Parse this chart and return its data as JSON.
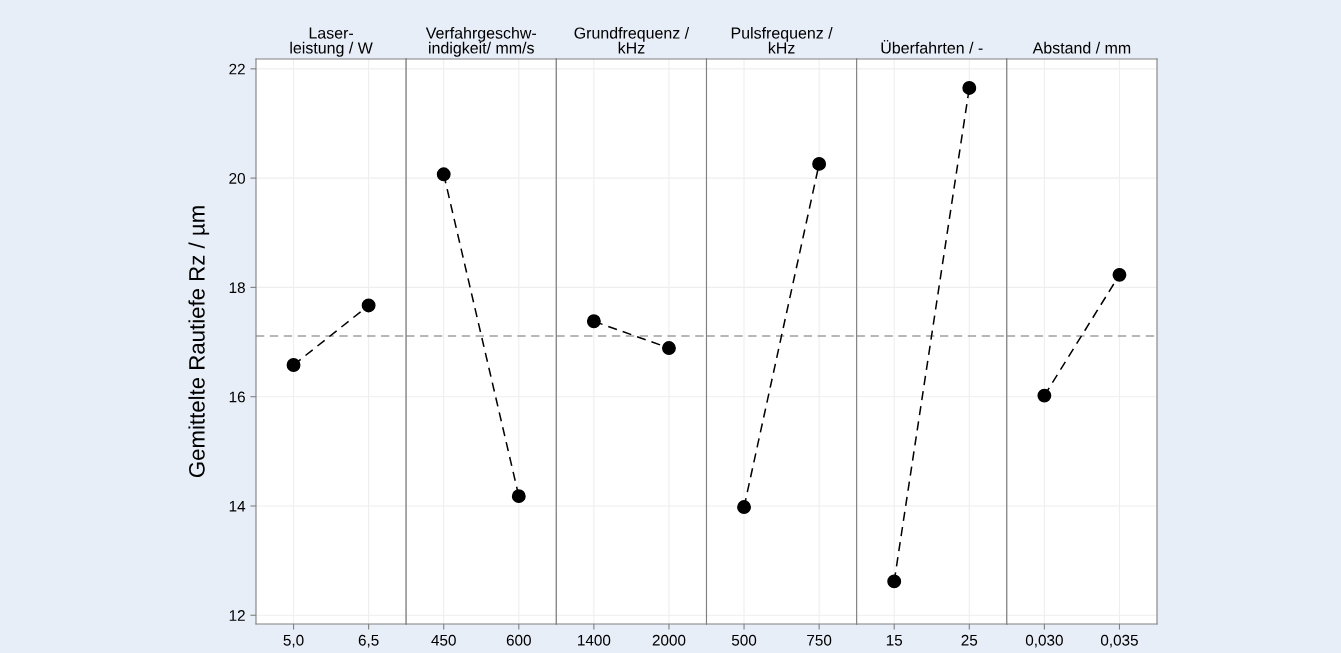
{
  "chart_data": [
    {
      "type": "line",
      "title": "Laser-\nleistung / W",
      "ylabel": "Gemittelte Rautiefe Rz / µm",
      "categories": [
        "5,0",
        "6,5"
      ],
      "values": [
        16.58,
        17.67
      ],
      "color": "#000000",
      "ylim": [
        11.84,
        22.18
      ],
      "yticks": [
        12,
        14,
        16,
        18,
        20,
        22
      ],
      "grid": true,
      "marker": "circle",
      "line_style": "dashed",
      "ref_lines": [
        {
          "axis": "y",
          "value": 17.11,
          "color": "#a0a0a0",
          "line_style": "dashed"
        }
      ]
    },
    {
      "type": "line",
      "title": "Verfahrgeschw-\nindigkeit/ mm/s",
      "categories": [
        "450",
        "600"
      ],
      "values": [
        20.07,
        14.18
      ],
      "color": "#000000",
      "ylim": [
        11.84,
        22.18
      ],
      "yticks": [
        12,
        14,
        16,
        18,
        20,
        22
      ],
      "tick_labels": "x",
      "grid": true,
      "marker": "circle",
      "line_style": "dashed",
      "ref_lines": [
        {
          "axis": "y",
          "value": 17.11,
          "color": "#a0a0a0",
          "line_style": "dashed"
        }
      ]
    },
    {
      "type": "line",
      "title": "Grundfrequenz /\nkHz",
      "categories": [
        "1400",
        "2000"
      ],
      "values": [
        17.38,
        16.89
      ],
      "color": "#000000",
      "ylim": [
        11.84,
        22.18
      ],
      "yticks": [
        12,
        14,
        16,
        18,
        20,
        22
      ],
      "tick_labels": "x",
      "grid": true,
      "marker": "circle",
      "line_style": "dashed",
      "ref_lines": [
        {
          "axis": "y",
          "value": 17.11,
          "color": "#a0a0a0",
          "line_style": "dashed"
        }
      ]
    },
    {
      "type": "line",
      "title": "Pulsfrequenz /\nkHz",
      "categories": [
        "500",
        "750"
      ],
      "values": [
        13.98,
        20.26
      ],
      "color": "#000000",
      "ylim": [
        11.84,
        22.18
      ],
      "yticks": [
        12,
        14,
        16,
        18,
        20,
        22
      ],
      "tick_labels": "x",
      "grid": true,
      "marker": "circle",
      "line_style": "dashed",
      "ref_lines": [
        {
          "axis": "y",
          "value": 17.11,
          "color": "#a0a0a0",
          "line_style": "dashed"
        }
      ]
    },
    {
      "type": "line",
      "title": "Überfahrten / -",
      "categories": [
        "15",
        "25"
      ],
      "values": [
        12.62,
        21.65
      ],
      "color": "#000000",
      "ylim": [
        11.84,
        22.18
      ],
      "yticks": [
        12,
        14,
        16,
        18,
        20,
        22
      ],
      "tick_labels": "x",
      "grid": true,
      "marker": "circle",
      "line_style": "dashed",
      "ref_lines": [
        {
          "axis": "y",
          "value": 17.11,
          "color": "#a0a0a0",
          "line_style": "dashed"
        }
      ]
    },
    {
      "type": "line",
      "title": "Abstand / mm",
      "categories": [
        "0,030",
        "0,035"
      ],
      "values": [
        16.02,
        18.23
      ],
      "color": "#000000",
      "ylim": [
        11.84,
        22.18
      ],
      "yticks": [
        12,
        14,
        16,
        18,
        20,
        22
      ],
      "tick_labels": "x",
      "grid": true,
      "marker": "circle",
      "line_style": "dashed",
      "ref_lines": [
        {
          "axis": "y",
          "value": 17.11,
          "color": "#a0a0a0",
          "line_style": "dashed"
        }
      ]
    }
  ]
}
